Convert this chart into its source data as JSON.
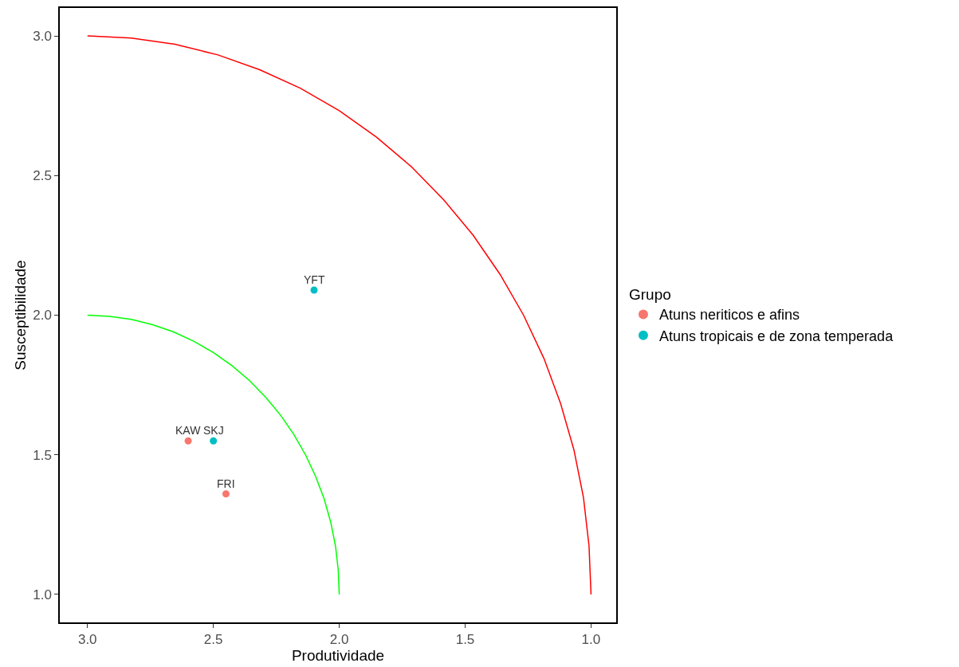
{
  "chart_data": {
    "type": "scatter",
    "xlabel": "Produtividade",
    "ylabel": "Susceptibilidade",
    "legend_title": "Grupo",
    "legend": "right",
    "grid": false,
    "marker": "circle",
    "xlim": [
      3.11,
      0.9
    ],
    "ylim": [
      0.9,
      3.1
    ],
    "xticks": [
      {
        "value": 3,
        "label": "3.0"
      },
      {
        "value": 2.5,
        "label": "2.5"
      },
      {
        "value": 2,
        "label": "2.0"
      },
      {
        "value": 1.5,
        "label": "1.5"
      },
      {
        "value": 1,
        "label": "1.0"
      }
    ],
    "yticks": [
      {
        "value": 1,
        "label": "1.0"
      },
      {
        "value": 1.5,
        "label": "1.5"
      },
      {
        "value": 2,
        "label": "2.0"
      },
      {
        "value": 2.5,
        "label": "2.5"
      },
      {
        "value": 3,
        "label": "3.0"
      }
    ],
    "series": [
      {
        "type": "line",
        "marker": "none",
        "color": "#ff0000",
        "x": [
          3,
          2.826,
          2.653,
          2.482,
          2.316,
          2.155,
          2.0,
          1.853,
          1.714,
          1.586,
          1.468,
          1.362,
          1.268,
          1.187,
          1.121,
          1.068,
          1.03,
          1.008,
          1.0
        ],
        "values": [
          3,
          2.992,
          2.97,
          2.932,
          2.879,
          2.813,
          2.732,
          2.638,
          2.532,
          2.414,
          2.286,
          2.147,
          2.0,
          1.845,
          1.684,
          1.518,
          1.347,
          1.174,
          1.0
        ]
      },
      {
        "type": "line",
        "marker": "none",
        "color": "#00ff00",
        "x": [
          3,
          2.913,
          2.826,
          2.741,
          2.658,
          2.577,
          2.5,
          2.426,
          2.357,
          2.293,
          2.234,
          2.181,
          2.134,
          2.094,
          2.06,
          2.034,
          2.015,
          2.004,
          2.0
        ],
        "values": [
          2,
          1.996,
          1.985,
          1.966,
          1.94,
          1.906,
          1.866,
          1.819,
          1.766,
          1.707,
          1.643,
          1.574,
          1.5,
          1.423,
          1.342,
          1.259,
          1.174,
          1.087,
          1.0
        ]
      },
      {
        "name": "Atuns neriticos e afins",
        "color": "#f8766d",
        "x": [
          2.6,
          2.45
        ],
        "values": [
          1.55,
          1.36
        ]
      },
      {
        "name": "Atuns tropicais e de zona temperada",
        "color": "#00bfc4",
        "x": [
          2.5,
          2.1
        ],
        "values": [
          1.55,
          2.09
        ]
      }
    ],
    "annotations": [
      {
        "text": "KAW",
        "x": 2.6,
        "y": 1.55
      },
      {
        "text": "SKJ",
        "x": 2.5,
        "y": 1.55
      },
      {
        "text": "FRI",
        "x": 2.45,
        "y": 1.36
      },
      {
        "text": "YFT",
        "x": 2.1,
        "y": 2.09
      }
    ]
  }
}
